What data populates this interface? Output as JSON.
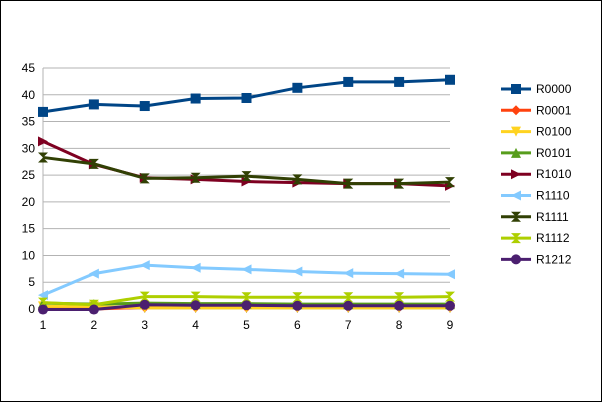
{
  "chart_data": {
    "type": "line",
    "title": "",
    "xlabel": "",
    "ylabel": "",
    "x": [
      1,
      2,
      3,
      4,
      5,
      6,
      7,
      8,
      9
    ],
    "ylim": [
      0,
      45
    ],
    "yticks": [
      0,
      5,
      10,
      15,
      20,
      25,
      30,
      35,
      40,
      45
    ],
    "grid": "horizontal",
    "legend_position": "right",
    "series": [
      {
        "name": "R0000",
        "color": "#004586",
        "marker": "square",
        "values": [
          36.8,
          38.2,
          37.9,
          39.3,
          39.4,
          41.3,
          42.4,
          42.4,
          42.8
        ]
      },
      {
        "name": "R0001",
        "color": "#ff420e",
        "marker": "diamond",
        "values": [
          0,
          0,
          0.3,
          0.3,
          0.3,
          0.3,
          0.3,
          0.3,
          0.3
        ]
      },
      {
        "name": "R0100",
        "color": "#ffd320",
        "marker": "triangle-down",
        "values": [
          0.5,
          0.5,
          0.2,
          0.2,
          0.2,
          0.2,
          0.2,
          0.2,
          0.2
        ]
      },
      {
        "name": "R0101",
        "color": "#579d1c",
        "marker": "triangle-up",
        "values": [
          1.1,
          0.9,
          1.1,
          1.0,
          1.0,
          0.9,
          0.9,
          0.9,
          0.9
        ]
      },
      {
        "name": "R1010",
        "color": "#7e0021",
        "marker": "triangle-right",
        "values": [
          31.3,
          27.0,
          24.5,
          24.2,
          23.8,
          23.6,
          23.4,
          23.4,
          23.0
        ]
      },
      {
        "name": "R1110",
        "color": "#83caff",
        "marker": "triangle-left",
        "values": [
          2.6,
          6.6,
          8.2,
          7.7,
          7.4,
          7.0,
          6.7,
          6.6,
          6.5
        ]
      },
      {
        "name": "R1111",
        "color": "#314004",
        "marker": "bowtie",
        "values": [
          28.3,
          27.1,
          24.4,
          24.5,
          24.8,
          24.2,
          23.4,
          23.4,
          23.7
        ]
      },
      {
        "name": "R1112",
        "color": "#aecf00",
        "marker": "hourglass",
        "values": [
          1.2,
          0.8,
          2.3,
          2.3,
          2.2,
          2.2,
          2.2,
          2.2,
          2.3
        ]
      },
      {
        "name": "R1212",
        "color": "#4b1f6f",
        "marker": "circle",
        "values": [
          -0.1,
          -0.1,
          0.8,
          0.7,
          0.7,
          0.6,
          0.6,
          0.6,
          0.6
        ]
      }
    ]
  }
}
